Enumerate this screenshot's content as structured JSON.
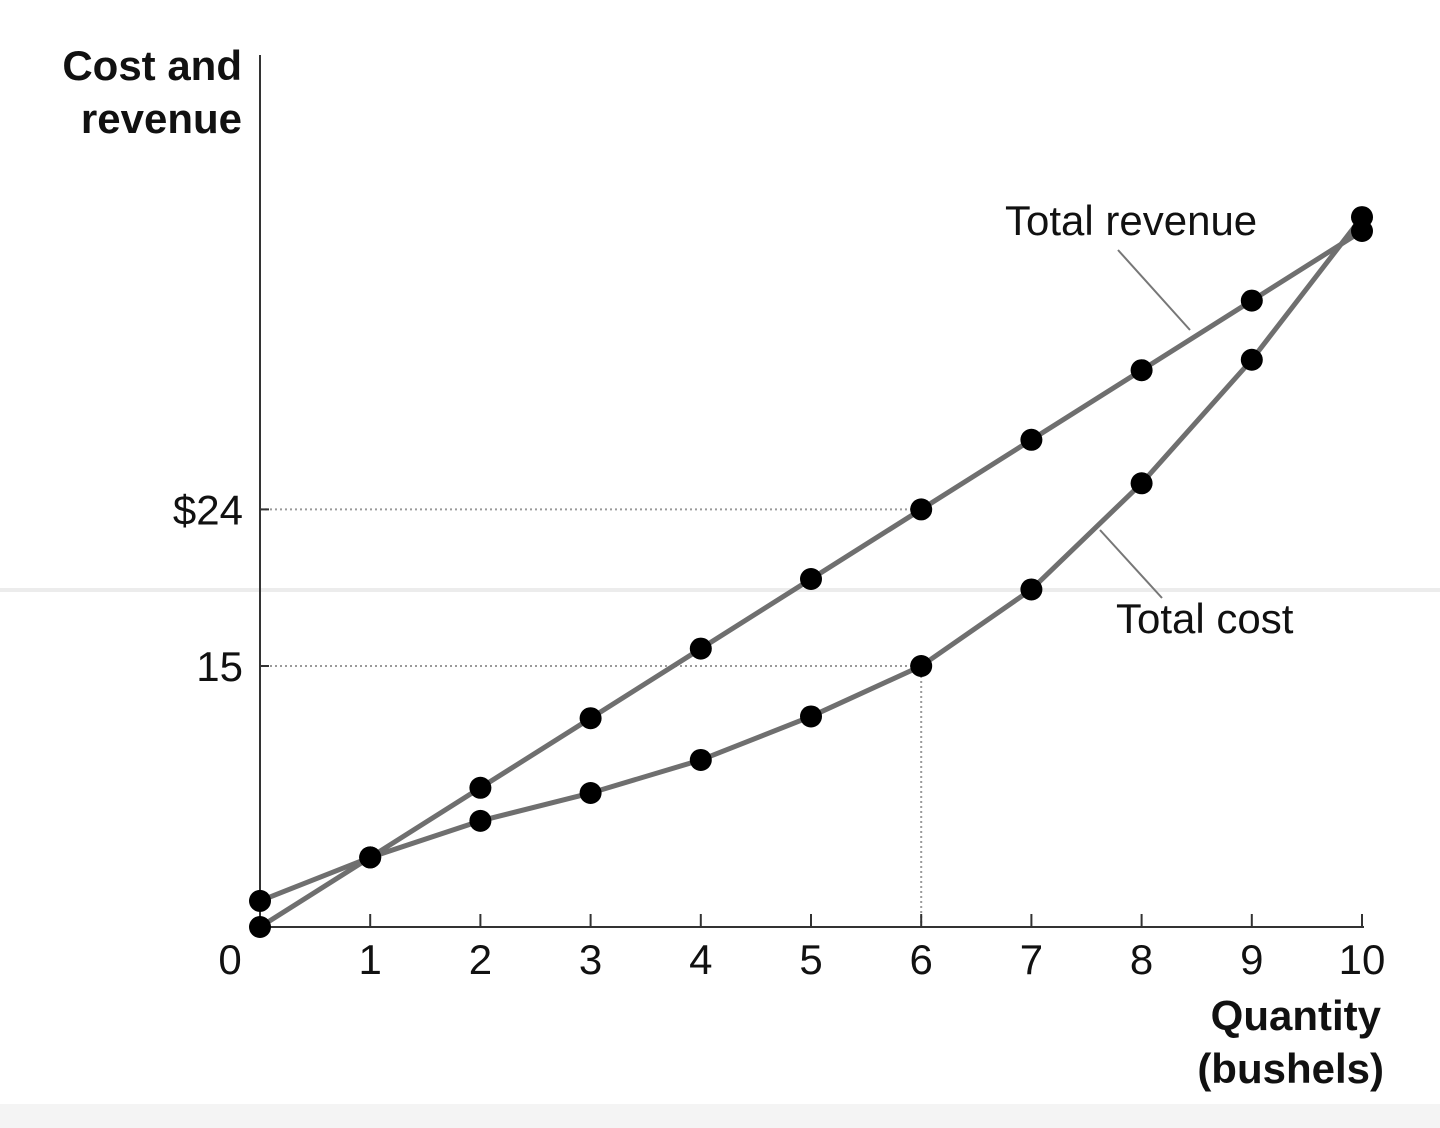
{
  "chart_data": {
    "type": "line",
    "xlabel_lines": [
      "Quantity",
      "(bushels)"
    ],
    "ylabel_lines": [
      "Cost and",
      "revenue"
    ],
    "x": [
      0,
      1,
      2,
      3,
      4,
      5,
      6,
      7,
      8,
      9,
      10
    ],
    "xlim": [
      0,
      10
    ],
    "ylim": [
      0,
      43
    ],
    "x_tick_labels": [
      "0",
      "1",
      "2",
      "3",
      "4",
      "5",
      "6",
      "7",
      "8",
      "9",
      "10"
    ],
    "y_ticks": [
      {
        "value": 15,
        "label": "15"
      },
      {
        "value": 24,
        "label": "$24"
      }
    ],
    "grid": false,
    "reference_lines": [
      {
        "axis": "y",
        "value": 24,
        "x_to": 6
      },
      {
        "axis": "y",
        "value": 15,
        "x_to": 6
      },
      {
        "axis": "x",
        "value": 6,
        "y_to": 15
      }
    ],
    "series": [
      {
        "name": "Total revenue",
        "values": [
          0,
          4,
          8,
          12,
          16,
          20,
          24,
          28,
          32,
          36,
          40
        ],
        "color": "#6f6f6f",
        "marker_color": "#000000"
      },
      {
        "name": "Total cost",
        "values": [
          1.5,
          4,
          6.1,
          7.7,
          9.6,
          12.1,
          15,
          19.4,
          25.5,
          32.6,
          40.8
        ],
        "color": "#6f6f6f",
        "marker_color": "#000000"
      }
    ]
  }
}
